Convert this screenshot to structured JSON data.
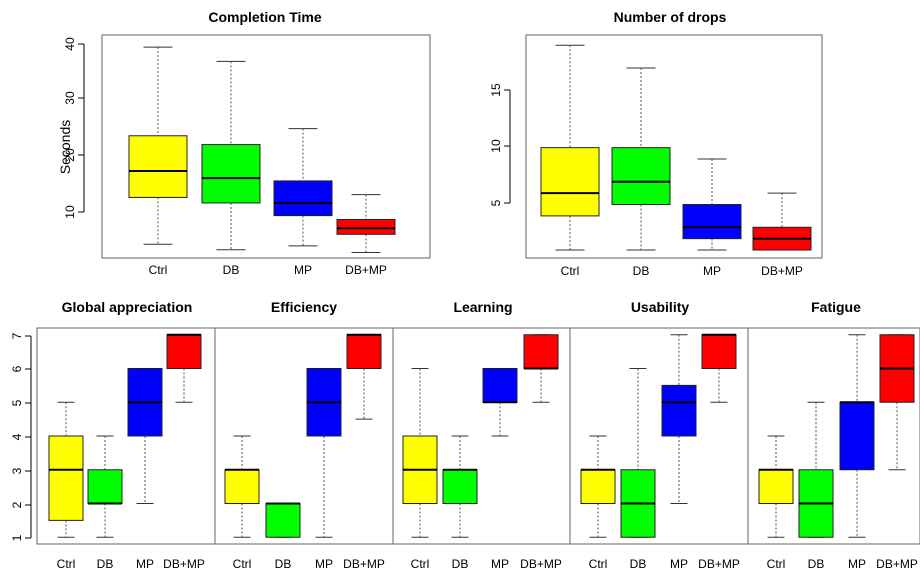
{
  "chart_data": [
    {
      "type": "box",
      "title": "Completion Time",
      "ylabel": "Seconds",
      "categories": [
        "Ctrl",
        "DB",
        "MP",
        "DB+MP"
      ],
      "yticks": [
        10,
        20,
        30,
        40
      ],
      "ylim": [
        2.5,
        43
      ],
      "boxes": [
        {
          "min": 5,
          "q1": 13.5,
          "median": 18.3,
          "q3": 24.7,
          "max": 40.8,
          "color": "#ffff00"
        },
        {
          "min": 4,
          "q1": 12.5,
          "median": 17.0,
          "q3": 23.1,
          "max": 38.2,
          "color": "#00ff00"
        },
        {
          "min": 4.7,
          "q1": 10.2,
          "median": 12.5,
          "q3": 16.5,
          "max": 26.0,
          "color": "#0000ff"
        },
        {
          "min": 3.5,
          "q1": 6.8,
          "median": 7.9,
          "q3": 9.5,
          "max": 14.0,
          "color": "#ff0000"
        }
      ]
    },
    {
      "type": "box",
      "title": "Number of drops",
      "ylabel": "",
      "categories": [
        "Ctrl",
        "DB",
        "MP",
        "DB+MP"
      ],
      "yticks": [
        5,
        10,
        15
      ],
      "ylim": [
        0.3,
        19.9
      ],
      "boxes": [
        {
          "min": 1,
          "q1": 4,
          "median": 6,
          "q3": 10,
          "max": 19,
          "color": "#ffff00"
        },
        {
          "min": 1,
          "q1": 5,
          "median": 7,
          "q3": 10,
          "max": 17,
          "color": "#00ff00"
        },
        {
          "min": 1,
          "q1": 2,
          "median": 3,
          "q3": 5,
          "max": 9,
          "color": "#0000ff"
        },
        {
          "min": 1,
          "q1": 1,
          "median": 2,
          "q3": 3,
          "max": 6,
          "color": "#ff0000"
        }
      ]
    },
    {
      "type": "box",
      "title": "Global appreciation",
      "categories": [
        "Ctrl",
        "DB",
        "MP",
        "DB+MP"
      ],
      "yticks": [
        1,
        2,
        3,
        4,
        5,
        6,
        7
      ],
      "ylim": [
        0.8,
        7.2
      ],
      "boxes": [
        {
          "min": 1,
          "q1": 1.5,
          "median": 3,
          "q3": 4,
          "max": 5,
          "color": "#ffff00"
        },
        {
          "min": 1,
          "q1": 2,
          "median": 2,
          "q3": 3,
          "max": 4,
          "color": "#00ff00"
        },
        {
          "min": 2,
          "q1": 4,
          "median": 5,
          "q3": 6,
          "max": 6,
          "color": "#0000ff"
        },
        {
          "min": 5,
          "q1": 6,
          "median": 7,
          "q3": 7,
          "max": 7,
          "color": "#ff0000"
        }
      ]
    },
    {
      "type": "box",
      "title": "Efficiency",
      "categories": [
        "Ctrl",
        "DB",
        "MP",
        "DB+MP"
      ],
      "ylim": [
        0.8,
        7.2
      ],
      "boxes": [
        {
          "min": 1,
          "q1": 2,
          "median": 3,
          "q3": 3,
          "max": 4,
          "color": "#ffff00"
        },
        {
          "min": 1,
          "q1": 1,
          "median": 2,
          "q3": 2,
          "max": 2,
          "color": "#00ff00"
        },
        {
          "min": 1,
          "q1": 4,
          "median": 5,
          "q3": 6,
          "max": 6,
          "color": "#0000ff"
        },
        {
          "min": 4.5,
          "q1": 6,
          "median": 7,
          "q3": 7,
          "max": 7,
          "color": "#ff0000"
        }
      ]
    },
    {
      "type": "box",
      "title": "Learning",
      "categories": [
        "Ctrl",
        "DB",
        "MP",
        "DB+MP"
      ],
      "ylim": [
        0.8,
        7.2
      ],
      "boxes": [
        {
          "min": 1,
          "q1": 2,
          "median": 3,
          "q3": 4,
          "max": 6,
          "color": "#ffff00"
        },
        {
          "min": 1,
          "q1": 2,
          "median": 3,
          "q3": 3,
          "max": 4,
          "color": "#00ff00"
        },
        {
          "min": 4,
          "q1": 5,
          "median": 5,
          "q3": 6,
          "max": 6,
          "color": "#0000ff"
        },
        {
          "min": 5,
          "q1": 6,
          "median": 6,
          "q3": 7,
          "max": 7,
          "color": "#ff0000"
        }
      ]
    },
    {
      "type": "box",
      "title": "Usability",
      "categories": [
        "Ctrl",
        "DB",
        "MP",
        "DB+MP"
      ],
      "ylim": [
        0.8,
        7.2
      ],
      "boxes": [
        {
          "min": 1,
          "q1": 2,
          "median": 3,
          "q3": 3,
          "max": 4,
          "color": "#ffff00"
        },
        {
          "min": 1,
          "q1": 1,
          "median": 2,
          "q3": 3,
          "max": 6,
          "color": "#00ff00"
        },
        {
          "min": 2,
          "q1": 4,
          "median": 5,
          "q3": 5.5,
          "max": 7,
          "color": "#0000ff"
        },
        {
          "min": 5,
          "q1": 6,
          "median": 7,
          "q3": 7,
          "max": 7,
          "color": "#ff0000"
        }
      ]
    },
    {
      "type": "box",
      "title": "Fatigue",
      "categories": [
        "Ctrl",
        "DB",
        "MP",
        "DB+MP"
      ],
      "ylim": [
        0.8,
        7.2
      ],
      "boxes": [
        {
          "min": 1,
          "q1": 2,
          "median": 3,
          "q3": 3,
          "max": 4,
          "color": "#ffff00"
        },
        {
          "min": 1,
          "q1": 1,
          "median": 2,
          "q3": 3,
          "max": 5,
          "color": "#00ff00"
        },
        {
          "min": 1,
          "q1": 3,
          "median": 5,
          "q3": 5,
          "max": 7,
          "color": "#0000ff"
        },
        {
          "min": 3,
          "q1": 5,
          "median": 6,
          "q3": 7,
          "max": 7,
          "color": "#ff0000"
        }
      ]
    }
  ]
}
